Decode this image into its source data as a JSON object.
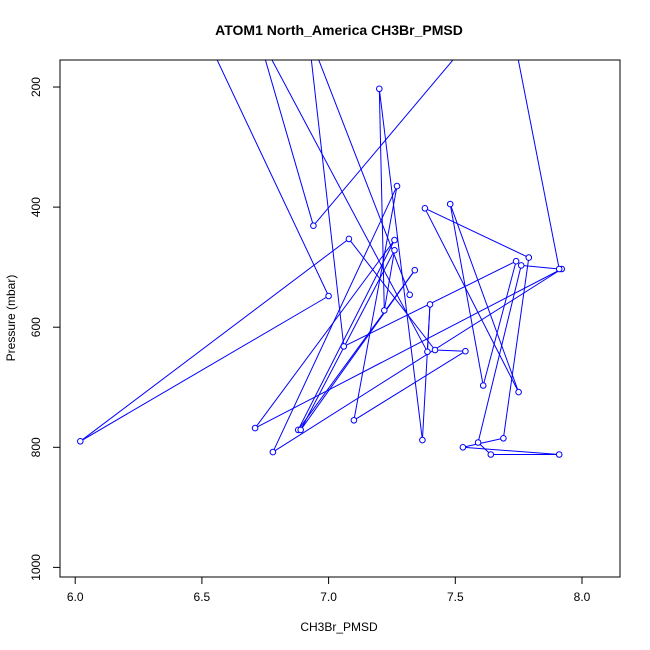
{
  "chart_data": {
    "type": "line",
    "title": "ATOM1 North_America CH3Br_PMSD",
    "xlabel": "CH3Br_PMSD",
    "ylabel": "Pressure (mbar)",
    "xlim": [
      5.94,
      8.15
    ],
    "ylim": [
      1016,
      155
    ],
    "y_inverted": true,
    "grid": false,
    "x_ticks": [
      6.0,
      6.5,
      7.0,
      7.5,
      8.0
    ],
    "x_tick_labels": [
      "6.0",
      "6.5",
      "7.0",
      "7.5",
      "8.0"
    ],
    "y_ticks": [
      200,
      400,
      600,
      800,
      1000
    ],
    "y_tick_labels": [
      "200",
      "400",
      "600",
      "800",
      "1000"
    ],
    "series": [
      {
        "color": "#0000ff",
        "marker": "open-circle",
        "points": [
          [
            6.51,
            110
          ],
          [
            7.0,
            548
          ],
          [
            6.02,
            790
          ],
          [
            7.08,
            453
          ],
          [
            7.42,
            638
          ],
          [
            7.54,
            640
          ],
          [
            7.1,
            755
          ],
          [
            7.27,
            365
          ],
          [
            6.78,
            808
          ],
          [
            7.92,
            503
          ],
          [
            6.71,
            768
          ],
          [
            7.26,
            455
          ],
          [
            6.88,
            771
          ],
          [
            7.34,
            505
          ],
          [
            6.89,
            771
          ],
          [
            7.26,
            472
          ],
          [
            7.22,
            572
          ],
          [
            7.2,
            203
          ],
          [
            7.37,
            788
          ],
          [
            7.4,
            562
          ],
          [
            7.39,
            641
          ],
          [
            6.72,
            110
          ],
          [
            6.94,
            431
          ],
          [
            7.7,
            50
          ],
          [
            7.91,
            503
          ],
          [
            7.76,
            497
          ],
          [
            7.59,
            792
          ],
          [
            7.64,
            812
          ],
          [
            7.91,
            812
          ],
          [
            7.53,
            800
          ],
          [
            7.69,
            785
          ],
          [
            7.79,
            484
          ],
          [
            7.38,
            402
          ],
          [
            7.75,
            708
          ],
          [
            7.48,
            395
          ],
          [
            7.61,
            697
          ],
          [
            7.74,
            490
          ],
          [
            7.06,
            632
          ],
          [
            6.92,
            110
          ],
          [
            7.32,
            546
          ]
        ]
      }
    ]
  }
}
